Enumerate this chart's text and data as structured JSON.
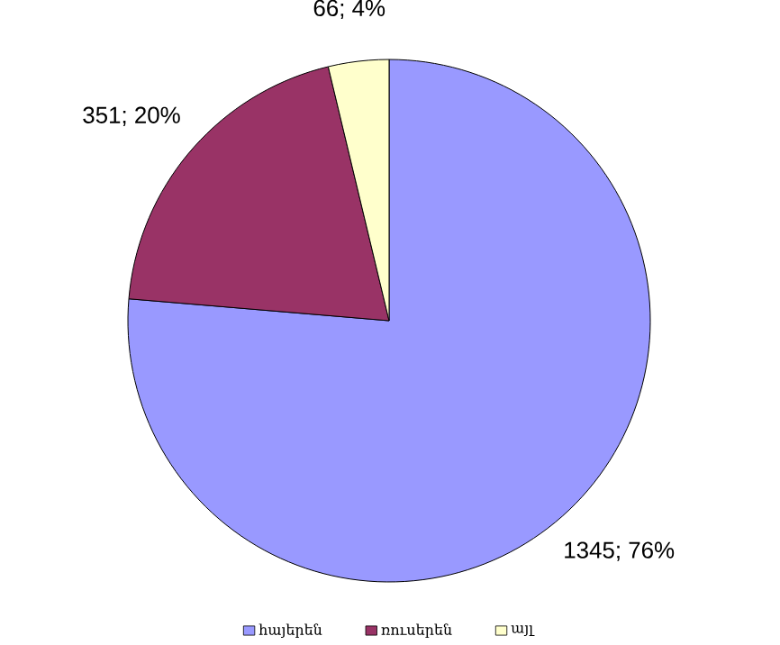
{
  "chart_data": {
    "type": "pie",
    "categories": [
      "հայերեն",
      "ռուսերեն",
      "այլ"
    ],
    "values": [
      1345,
      351,
      66
    ],
    "colors": [
      "#9999ff",
      "#993366",
      "#ffffcc"
    ],
    "value_labels": [
      "1345; 76%",
      "351; 20%",
      "66; 4%"
    ],
    "legend": "bottom"
  }
}
